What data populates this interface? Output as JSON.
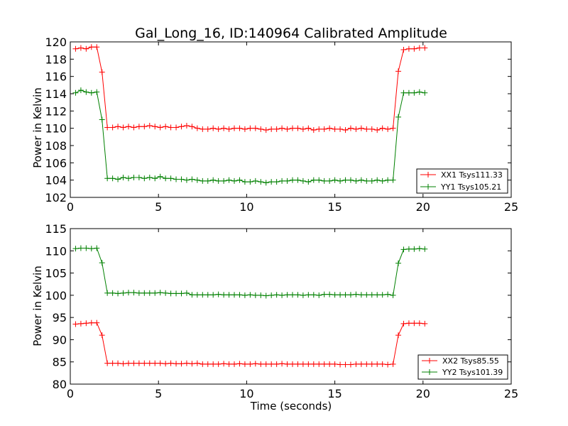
{
  "chart_data": [
    {
      "type": "line",
      "title": "Gal_Long_16, ID:140964 Calibrated Amplitude",
      "xlabel": "",
      "ylabel": "Power in Kelvin",
      "xlim": [
        0,
        25
      ],
      "ylim": [
        102,
        120
      ],
      "xticks": [
        "0",
        "5",
        "10",
        "15",
        "20",
        "25"
      ],
      "yticks": [
        "102",
        "104",
        "106",
        "108",
        "110",
        "112",
        "114",
        "116",
        "118",
        "120"
      ],
      "grid": false,
      "legend_position": "lower-right",
      "x": [
        0.3,
        0.6,
        0.9,
        1.2,
        1.5,
        1.8,
        2.1,
        2.4,
        2.7,
        3.0,
        3.3,
        3.6,
        3.9,
        4.2,
        4.5,
        4.8,
        5.1,
        5.4,
        5.7,
        6.0,
        6.3,
        6.6,
        6.9,
        7.2,
        7.5,
        7.8,
        8.1,
        8.4,
        8.7,
        9.0,
        9.3,
        9.6,
        9.9,
        10.2,
        10.5,
        10.8,
        11.1,
        11.4,
        11.7,
        12.0,
        12.3,
        12.6,
        12.9,
        13.2,
        13.5,
        13.8,
        14.1,
        14.4,
        14.7,
        15.0,
        15.3,
        15.6,
        15.9,
        16.2,
        16.5,
        16.8,
        17.1,
        17.4,
        17.7,
        18.0,
        18.3,
        18.6,
        18.9,
        19.2,
        19.5,
        19.8,
        20.1
      ],
      "series": [
        {
          "name": "XX1 Tsys111.33",
          "color": "#ff0000",
          "values": [
            119.2,
            119.3,
            119.2,
            119.4,
            119.4,
            116.5,
            110.1,
            110.1,
            110.2,
            110.1,
            110.2,
            110.1,
            110.2,
            110.2,
            110.3,
            110.2,
            110.1,
            110.2,
            110.1,
            110.1,
            110.2,
            110.3,
            110.2,
            110.0,
            109.9,
            109.9,
            110.0,
            109.9,
            110.0,
            109.9,
            110.0,
            110.0,
            109.9,
            110.0,
            110.0,
            109.9,
            109.8,
            109.9,
            109.9,
            110.0,
            109.9,
            110.0,
            110.0,
            109.9,
            110.0,
            109.8,
            109.9,
            109.9,
            110.0,
            109.9,
            109.9,
            109.8,
            110.0,
            109.9,
            110.0,
            109.9,
            109.9,
            109.8,
            110.0,
            109.9,
            110.0,
            116.6,
            119.1,
            119.2,
            119.2,
            119.3,
            119.3
          ]
        },
        {
          "name": "YY1 Tsys105.21",
          "color": "#008000",
          "values": [
            114.1,
            114.4,
            114.2,
            114.1,
            114.2,
            111.0,
            104.2,
            104.2,
            104.1,
            104.3,
            104.2,
            104.3,
            104.3,
            104.2,
            104.3,
            104.2,
            104.4,
            104.2,
            104.2,
            104.1,
            104.1,
            104.0,
            104.1,
            104.0,
            103.9,
            103.9,
            104.0,
            103.9,
            103.9,
            104.0,
            103.9,
            104.0,
            103.8,
            103.8,
            103.9,
            103.8,
            103.7,
            103.8,
            103.8,
            103.9,
            103.9,
            104.0,
            104.0,
            103.9,
            103.8,
            104.0,
            104.0,
            103.9,
            103.9,
            104.0,
            103.9,
            104.0,
            104.0,
            103.9,
            104.0,
            103.9,
            103.9,
            104.0,
            103.9,
            104.0,
            104.0,
            111.3,
            114.1,
            114.1,
            114.1,
            114.2,
            114.1
          ]
        }
      ]
    },
    {
      "type": "line",
      "title": "",
      "xlabel": "Time (seconds)",
      "ylabel": "Power in Kelvin",
      "xlim": [
        0,
        25
      ],
      "ylim": [
        80,
        115
      ],
      "xticks": [
        "0",
        "5",
        "10",
        "15",
        "20",
        "25"
      ],
      "yticks": [
        "80",
        "85",
        "90",
        "95",
        "100",
        "105",
        "110",
        "115"
      ],
      "grid": false,
      "legend_position": "lower-right",
      "x": [
        0.3,
        0.6,
        0.9,
        1.2,
        1.5,
        1.8,
        2.1,
        2.4,
        2.7,
        3.0,
        3.3,
        3.6,
        3.9,
        4.2,
        4.5,
        4.8,
        5.1,
        5.4,
        5.7,
        6.0,
        6.3,
        6.6,
        6.9,
        7.2,
        7.5,
        7.8,
        8.1,
        8.4,
        8.7,
        9.0,
        9.3,
        9.6,
        9.9,
        10.2,
        10.5,
        10.8,
        11.1,
        11.4,
        11.7,
        12.0,
        12.3,
        12.6,
        12.9,
        13.2,
        13.5,
        13.8,
        14.1,
        14.4,
        14.7,
        15.0,
        15.3,
        15.6,
        15.9,
        16.2,
        16.5,
        16.8,
        17.1,
        17.4,
        17.7,
        18.0,
        18.3,
        18.6,
        18.9,
        19.2,
        19.5,
        19.8,
        20.1
      ],
      "series": [
        {
          "name": "XX2 Tsys85.55",
          "color": "#ff0000",
          "values": [
            93.5,
            93.6,
            93.7,
            93.8,
            93.8,
            91.0,
            84.7,
            84.7,
            84.7,
            84.6,
            84.7,
            84.7,
            84.7,
            84.7,
            84.7,
            84.7,
            84.7,
            84.6,
            84.7,
            84.6,
            84.6,
            84.7,
            84.6,
            84.7,
            84.5,
            84.5,
            84.5,
            84.5,
            84.6,
            84.5,
            84.5,
            84.6,
            84.5,
            84.5,
            84.6,
            84.5,
            84.5,
            84.5,
            84.5,
            84.6,
            84.5,
            84.5,
            84.5,
            84.5,
            84.5,
            84.5,
            84.5,
            84.5,
            84.5,
            84.5,
            84.4,
            84.4,
            84.4,
            84.5,
            84.5,
            84.5,
            84.5,
            84.5,
            84.5,
            84.4,
            84.5,
            91.0,
            93.6,
            93.7,
            93.7,
            93.7,
            93.6
          ]
        },
        {
          "name": "YY2 Tsys101.39",
          "color": "#008000",
          "values": [
            110.5,
            110.6,
            110.6,
            110.5,
            110.6,
            107.3,
            100.5,
            100.5,
            100.4,
            100.5,
            100.6,
            100.6,
            100.5,
            100.5,
            100.5,
            100.5,
            100.6,
            100.5,
            100.4,
            100.4,
            100.4,
            100.5,
            100.1,
            100.1,
            100.1,
            100.1,
            100.1,
            100.2,
            100.1,
            100.1,
            100.1,
            100.1,
            100.0,
            100.1,
            100.0,
            100.0,
            99.9,
            100.0,
            100.1,
            100.0,
            100.1,
            100.1,
            100.1,
            100.0,
            100.1,
            100.1,
            100.0,
            100.2,
            100.2,
            100.1,
            100.1,
            100.1,
            100.1,
            100.2,
            100.1,
            100.1,
            100.1,
            100.1,
            100.1,
            100.2,
            100.0,
            107.2,
            110.3,
            110.4,
            110.4,
            110.5,
            110.4
          ]
        }
      ]
    }
  ]
}
